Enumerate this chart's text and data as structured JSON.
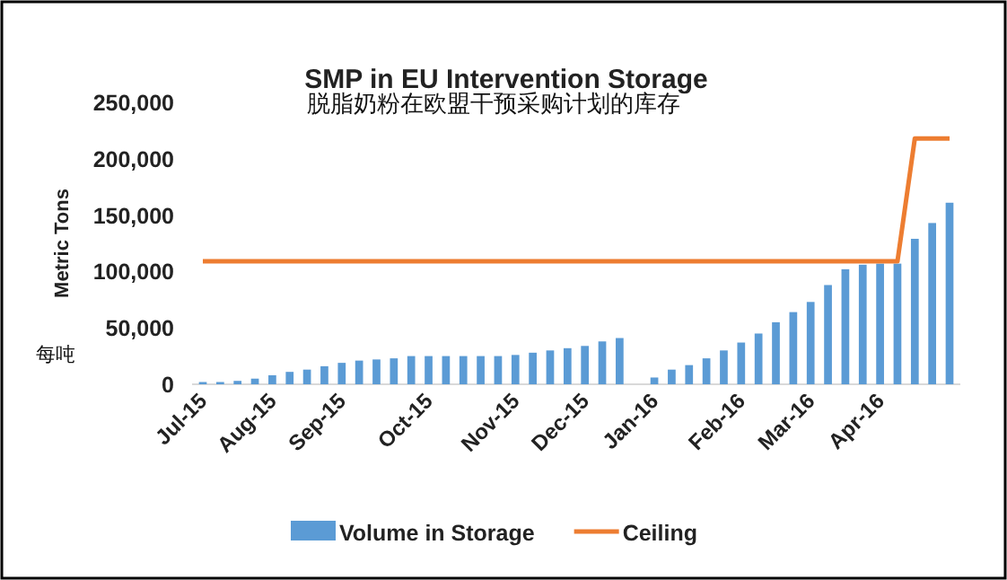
{
  "chart_data": {
    "type": "bar",
    "title": "SMP in EU Intervention Storage",
    "subtitle": "脱脂奶粉在欧盟干预采购计划的库存",
    "ylabel": "Metric Tons",
    "annotations": [
      "每吨"
    ],
    "categories": [
      "Jul-15",
      null,
      null,
      null,
      "Aug-15",
      null,
      null,
      null,
      "Sep-15",
      null,
      null,
      null,
      null,
      "Oct-15",
      null,
      null,
      null,
      null,
      "Nov-15",
      null,
      null,
      null,
      "Dec-15",
      null,
      null,
      null,
      "Jan-16",
      null,
      null,
      null,
      null,
      "Feb-16",
      null,
      null,
      null,
      "Mar-16",
      null,
      null,
      null,
      "Apr-16",
      null,
      null,
      null,
      null
    ],
    "series": [
      {
        "name": "Volume in Storage",
        "color": "#5b9bd5",
        "values": [
          2000,
          2000,
          3000,
          5000,
          8000,
          11000,
          13000,
          16000,
          19000,
          21000,
          22000,
          23000,
          25000,
          25000,
          25000,
          25000,
          25000,
          25000,
          26000,
          28000,
          30000,
          32000,
          34000,
          38000,
          41000,
          null,
          6000,
          13000,
          17000,
          23000,
          30000,
          37000,
          45000,
          55000,
          64000,
          73000,
          88000,
          102000,
          106000,
          107000,
          107000,
          129000,
          143000,
          161000
        ]
      },
      {
        "name": "Ceiling",
        "type": "line",
        "color": "#ed7d31",
        "values": [
          109000,
          109000,
          109000,
          109000,
          109000,
          109000,
          109000,
          109000,
          109000,
          109000,
          109000,
          109000,
          109000,
          109000,
          109000,
          109000,
          109000,
          109000,
          109000,
          109000,
          109000,
          109000,
          109000,
          109000,
          109000,
          109000,
          109000,
          109000,
          109000,
          109000,
          109000,
          109000,
          109000,
          109000,
          109000,
          109000,
          109000,
          109000,
          109000,
          109000,
          109000,
          218000,
          218000,
          218000
        ]
      }
    ],
    "ylim": [
      0,
      250000
    ],
    "yticks": [
      {
        "value": 0,
        "label": "0"
      },
      {
        "value": 50000,
        "label": "50,000"
      },
      {
        "value": 100000,
        "label": "100,000"
      },
      {
        "value": 150000,
        "label": "150,000"
      },
      {
        "value": 200000,
        "label": "200,000"
      },
      {
        "value": 250000,
        "label": "250,000"
      }
    ],
    "legend": "bottom"
  }
}
